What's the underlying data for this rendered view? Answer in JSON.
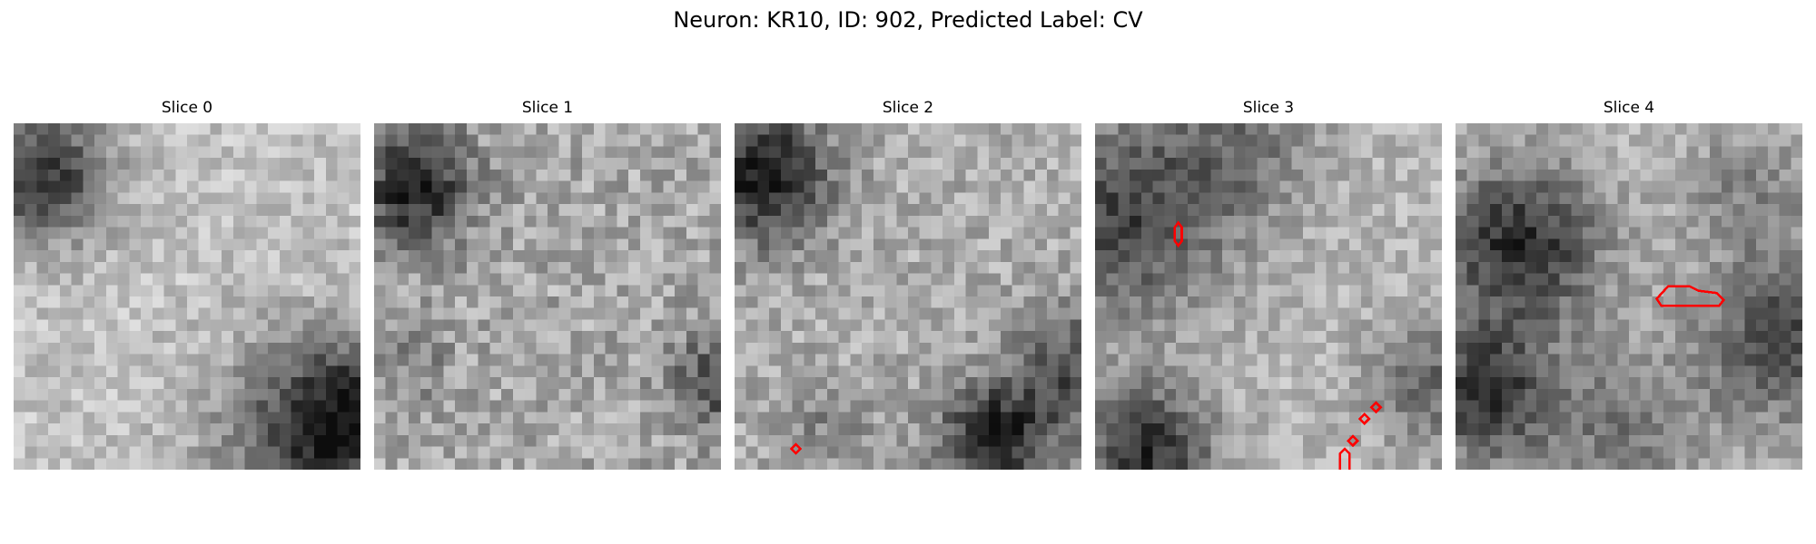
{
  "figure": {
    "title": "Neuron: KR10, ID: 902, Predicted Label: CV",
    "contour_color": "#ff0000"
  },
  "panels": [
    {
      "title": "Slice 0"
    },
    {
      "title": "Slice 1"
    },
    {
      "title": "Slice 2"
    },
    {
      "title": "Slice 3"
    },
    {
      "title": "Slice 4"
    }
  ]
}
